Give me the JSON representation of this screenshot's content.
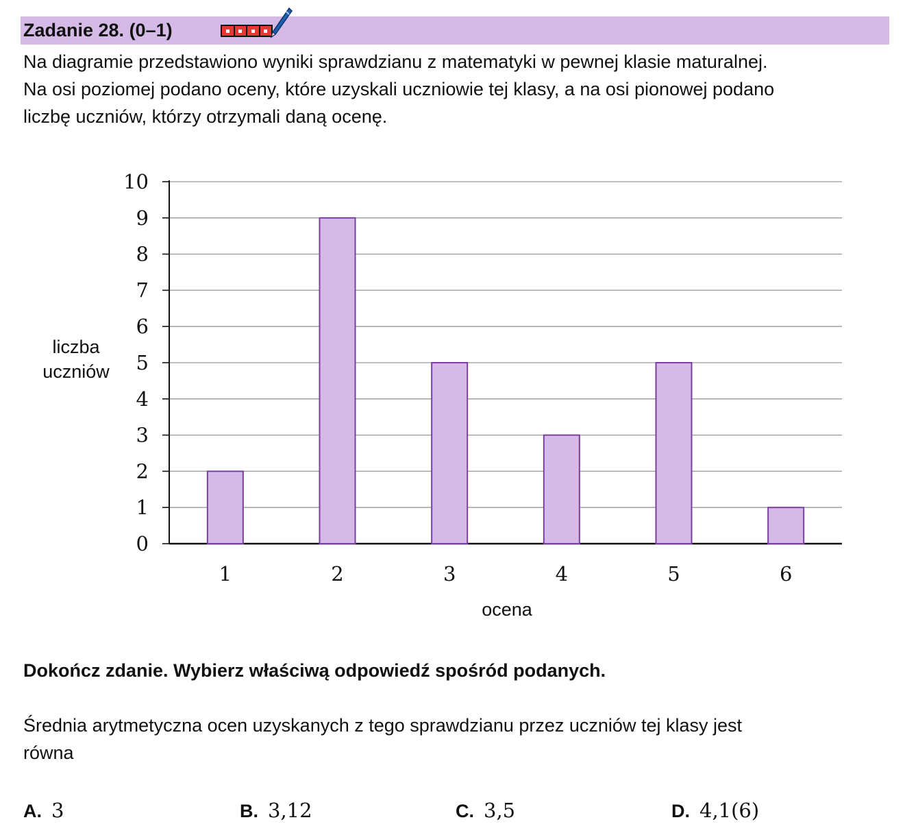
{
  "header": {
    "title": "Zadanie 28. (0–1)",
    "icons": [
      "four-squares-icon",
      "pen-icon"
    ],
    "bar_color": "#d5b9e6"
  },
  "intro": {
    "line1": "Na diagramie przedstawiono wyniki sprawdzianu z matematyki w pewnej klasie maturalnej.",
    "line2": "Na osi poziomej podano oceny, które uzyskali uczniowie tej klasy, a na osi pionowej podano",
    "line3": "liczbę uczniów, którzy otrzymali daną ocenę."
  },
  "chart_data": {
    "type": "bar",
    "categories": [
      "1",
      "2",
      "3",
      "4",
      "5",
      "6"
    ],
    "values": [
      2,
      9,
      5,
      3,
      5,
      1
    ],
    "xlabel": "ocena",
    "ylabel_line1": "liczba",
    "ylabel_line2": "uczniów",
    "ylim": [
      0,
      10
    ],
    "yticks": [
      "0",
      "1",
      "2",
      "3",
      "4",
      "5",
      "6",
      "7",
      "8",
      "9",
      "10"
    ],
    "grid": true,
    "bar_fill": "#d5b9e6",
    "bar_stroke": "#7b3fa0"
  },
  "instruction": "Dokończ zdanie. Wybierz właściwą odpowiedź spośród podanych.",
  "question": {
    "line1": "Średnia arytmetyczna ocen uzyskanych z tego sprawdzianu przez uczniów tej klasy jest",
    "line2": "równa"
  },
  "options": [
    {
      "letter": "A.",
      "value": "3"
    },
    {
      "letter": "B.",
      "value": "3,12"
    },
    {
      "letter": "C.",
      "value": "3,5"
    },
    {
      "letter": "D.",
      "value": "4,1(6)"
    }
  ]
}
